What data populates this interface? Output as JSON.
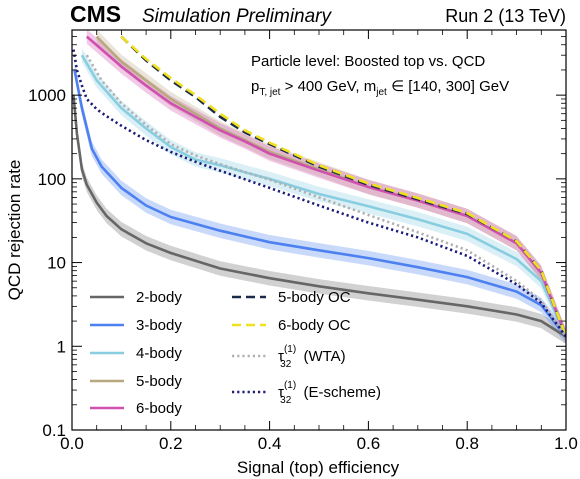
{
  "chart_data": {
    "type": "line",
    "header": {
      "brand": "CMS",
      "tag": "Simulation Preliminary",
      "run": "Run 2 (13 TeV)"
    },
    "annotation": {
      "line1": "Particle level: Boosted top vs. QCD",
      "line2_main": "p",
      "line2_sub1": "T, jet",
      "line2_mid": " > 400 GeV,  m",
      "line2_sub2": "jet",
      "line2_end": " ∈ [140, 300] GeV"
    },
    "xlabel": "Signal (top) efficiency",
    "ylabel": "QCD rejection rate",
    "xlim": [
      0,
      1
    ],
    "ylim": [
      0.1,
      6000
    ],
    "yscale": "log",
    "xticks": [
      {
        "value": 0.0,
        "label": "0.0"
      },
      {
        "value": 0.2,
        "label": "0.2"
      },
      {
        "value": 0.4,
        "label": "0.4"
      },
      {
        "value": 0.6,
        "label": "0.6"
      },
      {
        "value": 0.8,
        "label": "0.8"
      },
      {
        "value": 1.0,
        "label": "1.0"
      }
    ],
    "yticks": [
      {
        "value": 0.1,
        "label": "0.1"
      },
      {
        "value": 1,
        "label": "1"
      },
      {
        "value": 10,
        "label": "10"
      },
      {
        "value": 100,
        "label": "100"
      },
      {
        "value": 1000,
        "label": "1000"
      }
    ],
    "grid": false,
    "legend_position": "bottom-left",
    "series": [
      {
        "name": "2-body",
        "color": "#666666",
        "style": "solid",
        "band": true,
        "x": [
          0.003,
          0.01,
          0.02,
          0.03,
          0.05,
          0.07,
          0.1,
          0.15,
          0.2,
          0.3,
          0.4,
          0.5,
          0.6,
          0.7,
          0.8,
          0.9,
          0.95,
          1.0
        ],
        "y": [
          1000,
          350,
          130,
          85,
          52,
          36,
          25,
          17,
          13,
          8.5,
          6.5,
          5.2,
          4.3,
          3.6,
          3.0,
          2.4,
          2.0,
          1.3
        ]
      },
      {
        "name": "3-body",
        "color": "#4d80f0",
        "style": "solid",
        "band": true,
        "x": [
          0.005,
          0.02,
          0.04,
          0.06,
          0.1,
          0.15,
          0.2,
          0.3,
          0.4,
          0.5,
          0.6,
          0.7,
          0.8,
          0.9,
          0.95,
          1.0
        ],
        "y": [
          2000,
          700,
          230,
          140,
          78,
          48,
          35,
          24,
          17.5,
          14,
          11.3,
          8.8,
          6.7,
          4.5,
          3.1,
          1.3
        ]
      },
      {
        "name": "4-body",
        "color": "#88cde0",
        "style": "solid",
        "band": true,
        "x": [
          0.02,
          0.05,
          0.1,
          0.15,
          0.2,
          0.25,
          0.3,
          0.35,
          0.4,
          0.5,
          0.6,
          0.7,
          0.8,
          0.9,
          0.95,
          1.0
        ],
        "y": [
          3000,
          1500,
          700,
          400,
          240,
          170,
          145,
          120,
          100,
          66,
          47,
          33,
          22,
          11,
          6,
          1.3
        ]
      },
      {
        "name": "5-body",
        "color": "#b8a880",
        "style": "solid",
        "band": true,
        "x": [
          0.05,
          0.1,
          0.15,
          0.2,
          0.25,
          0.3,
          0.35,
          0.4,
          0.5,
          0.6,
          0.7,
          0.8,
          0.9,
          0.95,
          1.0
        ],
        "y": [
          5000,
          2500,
          1500,
          900,
          600,
          400,
          290,
          210,
          130,
          80,
          55,
          36,
          17,
          7.5,
          1.3
        ]
      },
      {
        "name": "6-body",
        "color": "#d050b0",
        "style": "solid",
        "band": true,
        "x": [
          0.03,
          0.1,
          0.15,
          0.2,
          0.25,
          0.3,
          0.35,
          0.4,
          0.5,
          0.6,
          0.7,
          0.8,
          0.9,
          0.95,
          1.0
        ],
        "y": [
          5000,
          2200,
          1300,
          800,
          550,
          380,
          280,
          200,
          125,
          80,
          55,
          36,
          17,
          7.5,
          1.3
        ]
      },
      {
        "name": "5-body OC",
        "color": "#1a2a4a",
        "style": "dashed",
        "band": false,
        "x": [
          0.1,
          0.15,
          0.2,
          0.25,
          0.3,
          0.35,
          0.4,
          0.5,
          0.6,
          0.7,
          0.8,
          0.9,
          0.95,
          1.0
        ],
        "y": [
          5000,
          2600,
          1500,
          950,
          550,
          360,
          260,
          140,
          85,
          57,
          38,
          18,
          8,
          1.3
        ]
      },
      {
        "name": "6-body OC",
        "color": "#f0e020",
        "style": "dashed",
        "band": false,
        "x": [
          0.1,
          0.15,
          0.2,
          0.25,
          0.3,
          0.35,
          0.4,
          0.5,
          0.6,
          0.7,
          0.8,
          0.9,
          0.95,
          1.0
        ],
        "y": [
          5000,
          2700,
          1600,
          1000,
          600,
          380,
          270,
          145,
          88,
          59,
          39,
          18,
          8,
          1.3
        ]
      },
      {
        "name": "τ32(1) (WTA)",
        "name_main": "τ",
        "name_sup": "(1)",
        "name_sub": "32",
        "name_rest": " (WTA)",
        "color": "#b0b0b0",
        "style": "dotted",
        "band": false,
        "x": [
          0.03,
          0.06,
          0.1,
          0.15,
          0.2,
          0.25,
          0.3,
          0.35,
          0.4,
          0.5,
          0.6,
          0.7,
          0.8,
          0.9,
          0.95,
          1.0
        ],
        "y": [
          3000,
          1500,
          800,
          440,
          260,
          190,
          150,
          120,
          98,
          60,
          37,
          23,
          14,
          6,
          3.5,
          1.3
        ]
      },
      {
        "name": "τ32(1) (E-scheme)",
        "name_main": "τ",
        "name_sup": "(1)",
        "name_sub": "32",
        "name_rest": " (E-scheme)",
        "color": "#1c1c7a",
        "style": "dotted",
        "band": false,
        "x": [
          0.003,
          0.01,
          0.02,
          0.03,
          0.05,
          0.07,
          0.1,
          0.15,
          0.2,
          0.25,
          0.3,
          0.4,
          0.5,
          0.6,
          0.7,
          0.8,
          0.9,
          0.95,
          1.0
        ],
        "y": [
          3500,
          2000,
          1300,
          900,
          680,
          560,
          430,
          290,
          210,
          160,
          125,
          78,
          48,
          30,
          20,
          12,
          5.5,
          3.3,
          1.3
        ]
      }
    ]
  }
}
